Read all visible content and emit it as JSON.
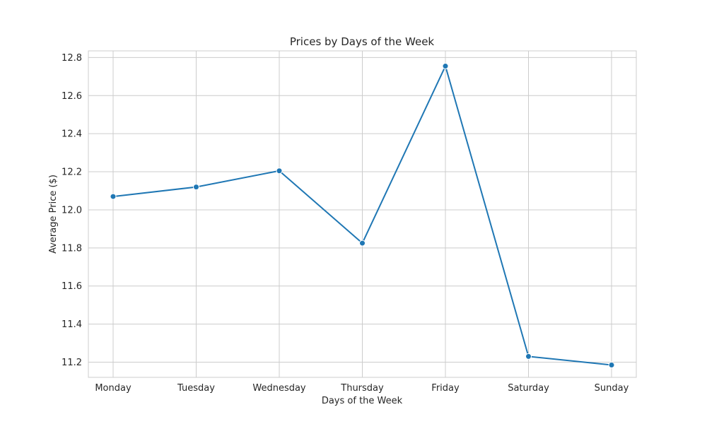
{
  "chart_data": {
    "type": "line",
    "title": "Prices by Days of the Week",
    "xlabel": "Days of the Week",
    "ylabel": "Average Price ($)",
    "categories": [
      "Monday",
      "Tuesday",
      "Wednesday",
      "Thursday",
      "Friday",
      "Saturday",
      "Sunday"
    ],
    "series": [
      {
        "values": [
          12.07,
          12.12,
          12.205,
          11.825,
          12.755,
          11.23,
          11.185
        ]
      }
    ],
    "yticks": [
      "11.2",
      "11.4",
      "11.6",
      "11.8",
      "12.0",
      "12.2",
      "12.4",
      "12.6",
      "12.8"
    ],
    "ylim": [
      11.12,
      12.835
    ],
    "grid": true,
    "colors": {
      "line": "#1f77b4",
      "grid": "#cccccc",
      "text": "#262626"
    }
  }
}
